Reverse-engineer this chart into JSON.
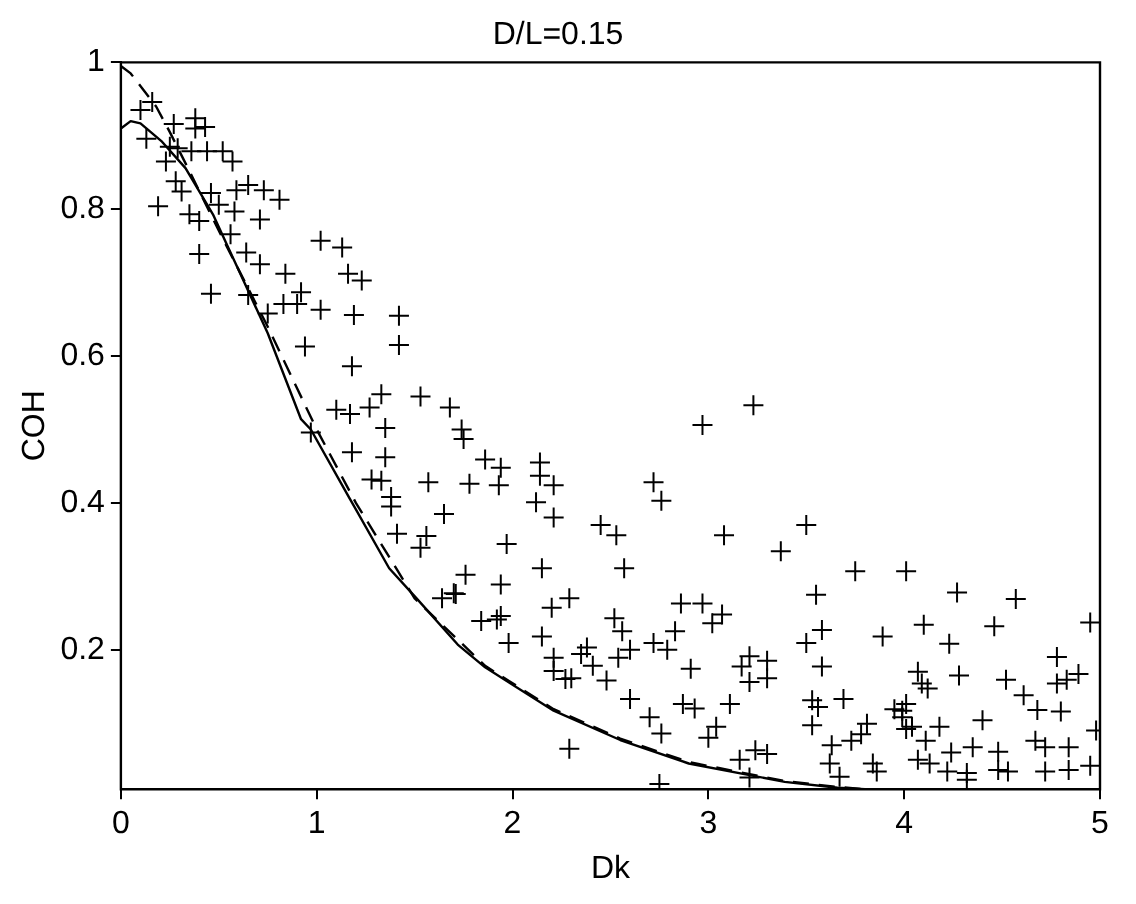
{
  "chart_data": {
    "type": "scatter",
    "title": "D/L=0.15",
    "xlabel": "Dk",
    "ylabel": "COH",
    "xlim": [
      0,
      5
    ],
    "xticks": [
      0,
      1,
      2,
      3,
      4,
      5
    ],
    "ylim": [
      0.01,
      1
    ],
    "yticks": [
      0.2,
      0.4,
      0.6,
      0.8,
      1
    ],
    "grid": false,
    "legend": false,
    "series": [
      {
        "color": "#000000",
        "marker": "cross",
        "x": [
          0.1,
          0.16,
          0.13,
          0.27,
          0.38,
          0.43,
          0.38,
          0.25,
          0.29,
          0.36,
          0.44,
          0.52,
          0.57,
          0.23,
          0.28,
          0.31,
          0.19,
          0.35,
          0.4,
          0.46,
          0.5,
          0.58,
          0.59,
          0.65,
          0.73,
          0.81,
          0.71,
          0.56,
          0.4,
          0.64,
          0.71,
          0.84,
          0.92,
          0.65,
          0.46,
          0.75,
          0.83,
          0.9,
          1.02,
          1.02,
          1.13,
          1.16,
          1.23,
          1.19,
          1.42,
          1.42,
          0.94,
          1.18,
          1.1,
          1.17,
          1.27,
          1.33,
          1.53,
          1.68,
          0.97,
          1.35,
          1.18,
          1.35,
          1.28,
          1.33,
          1.38,
          1.38,
          1.41,
          1.53,
          1.56,
          1.57,
          1.65,
          1.64,
          1.7,
          1.74,
          1.75,
          1.86,
          1.94,
          1.93,
          1.78,
          2.14,
          2.14,
          2.21,
          2.12,
          2.21,
          1.97,
          2.15,
          1.76,
          1.71,
          1.94,
          1.94,
          1.84,
          1.92,
          1.98,
          2.15,
          2.2,
          2.29,
          2.21,
          2.21,
          2.27,
          2.3,
          2.29,
          2.35,
          2.38,
          2.41,
          2.48,
          2.45,
          2.53,
          2.57,
          2.52,
          2.56,
          2.6,
          2.54,
          2.6,
          2.72,
          2.76,
          2.72,
          2.79,
          2.83,
          2.86,
          2.97,
          3.02,
          3.07,
          2.91,
          2.87,
          2.93,
          3.11,
          2.7,
          2.76,
          3.0,
          3.04,
          2.75,
          2.97,
          3.23,
          3.08,
          3.17,
          3.21,
          3.21,
          3.3,
          3.3,
          3.16,
          3.24,
          3.3,
          3.21,
          3.37,
          3.5,
          3.75,
          4.01,
          3.55,
          4.27,
          4.57,
          4.95,
          3.5,
          3.58,
          3.89,
          4.1,
          4.46,
          4.23,
          3.58,
          4.07,
          4.09,
          4.12,
          4.28,
          4.52,
          4.61,
          4.78,
          4.78,
          4.83,
          4.89,
          4.68,
          4.8,
          3.53,
          3.56,
          3.69,
          3.53,
          3.63,
          3.73,
          3.78,
          3.81,
          3.95,
          3.99,
          4.01,
          3.99,
          4.01,
          4.04,
          4.11,
          4.18,
          4.4,
          4.07,
          4.13,
          4.24,
          4.35,
          4.48,
          4.67,
          4.72,
          4.84,
          4.72,
          4.84,
          4.95,
          4.98,
          3.62,
          3.67,
          3.84,
          3.86,
          4.22,
          4.32,
          4.32,
          4.48,
          4.53
        ],
        "values": [
          0.935,
          0.946,
          0.896,
          0.916,
          0.924,
          0.912,
          0.91,
          0.885,
          0.883,
          0.879,
          0.879,
          0.879,
          0.865,
          0.865,
          0.838,
          0.824,
          0.804,
          0.793,
          0.784,
          0.822,
          0.806,
          0.797,
          0.826,
          0.833,
          0.826,
          0.813,
          0.786,
          0.766,
          0.739,
          0.741,
          0.725,
          0.712,
          0.687,
          0.683,
          0.685,
          0.658,
          0.671,
          0.671,
          0.663,
          0.757,
          0.748,
          0.712,
          0.703,
          0.656,
          0.655,
          0.615,
          0.613,
          0.586,
          0.527,
          0.521,
          0.53,
          0.548,
          0.545,
          0.53,
          0.496,
          0.502,
          0.469,
          0.462,
          0.432,
          0.43,
          0.408,
          0.395,
          0.358,
          0.339,
          0.355,
          0.428,
          0.385,
          0.27,
          0.277,
          0.5,
          0.487,
          0.459,
          0.448,
          0.424,
          0.426,
          0.455,
          0.437,
          0.424,
          0.401,
          0.38,
          0.344,
          0.311,
          0.302,
          0.276,
          0.289,
          0.246,
          0.239,
          0.241,
          0.209,
          0.218,
          0.257,
          0.27,
          0.189,
          0.171,
          0.16,
          0.161,
          0.065,
          0.194,
          0.203,
          0.178,
          0.158,
          0.37,
          0.356,
          0.311,
          0.243,
          0.225,
          0.2,
          0.189,
          0.133,
          0.428,
          0.403,
          0.209,
          0.2,
          0.225,
          0.263,
          0.263,
          0.236,
          0.248,
          0.174,
          0.126,
          0.12,
          0.126,
          0.108,
          0.086,
          0.08,
          0.095,
          0.017,
          0.506,
          0.533,
          0.356,
          0.177,
          0.191,
          0.156,
          0.185,
          0.161,
          0.05,
          0.063,
          0.058,
          0.026,
          0.334,
          0.37,
          0.307,
          0.307,
          0.275,
          0.278,
          0.269,
          0.237,
          0.209,
          0.227,
          0.218,
          0.234,
          0.232,
          0.208,
          0.177,
          0.17,
          0.154,
          0.147,
          0.165,
          0.159,
          0.138,
          0.19,
          0.154,
          0.159,
          0.167,
          0.118,
          0.116,
          0.131,
          0.122,
          0.133,
          0.097,
          0.07,
          0.076,
          0.085,
          0.099,
          0.119,
          0.117,
          0.126,
          0.108,
          0.092,
          0.095,
          0.076,
          0.095,
          0.104,
          0.05,
          0.045,
          0.06,
          0.067,
          0.061,
          0.076,
          0.067,
          0.067,
          0.034,
          0.036,
          0.042,
          0.09,
          0.045,
          0.027,
          0.045,
          0.034,
          0.034,
          0.032,
          0.023,
          0.036,
          0.034
        ]
      },
      {
        "type": "line",
        "color": "#000000",
        "marker": "none",
        "line_style": "solid",
        "x": [
          0,
          0.05,
          0.1,
          0.21,
          0.33,
          0.47,
          0.61,
          0.75,
          0.92,
          0.97,
          1.16,
          1.37,
          1.51,
          1.72,
          1.86,
          2.21,
          2.55,
          2.9,
          3.39,
          3.66,
          3.8
        ],
        "values": [
          0.91,
          0.92,
          0.917,
          0.892,
          0.856,
          0.793,
          0.712,
          0.631,
          0.514,
          0.5,
          0.41,
          0.311,
          0.27,
          0.207,
          0.176,
          0.117,
          0.077,
          0.045,
          0.02,
          0.012,
          0.01
        ]
      },
      {
        "type": "line",
        "color": "#000000",
        "marker": "none",
        "line_style": "dashed",
        "x": [
          0,
          0.05,
          0.18,
          0.25,
          0.35,
          0.52,
          0.75,
          1.0,
          1.2,
          1.5,
          1.86,
          2.21,
          2.55,
          2.9,
          3.39,
          3.66,
          3.8
        ],
        "values": [
          0.995,
          0.985,
          0.94,
          0.905,
          0.852,
          0.76,
          0.64,
          0.5,
          0.4,
          0.27,
          0.178,
          0.119,
          0.079,
          0.047,
          0.021,
          0.013,
          0.01
        ]
      }
    ]
  }
}
